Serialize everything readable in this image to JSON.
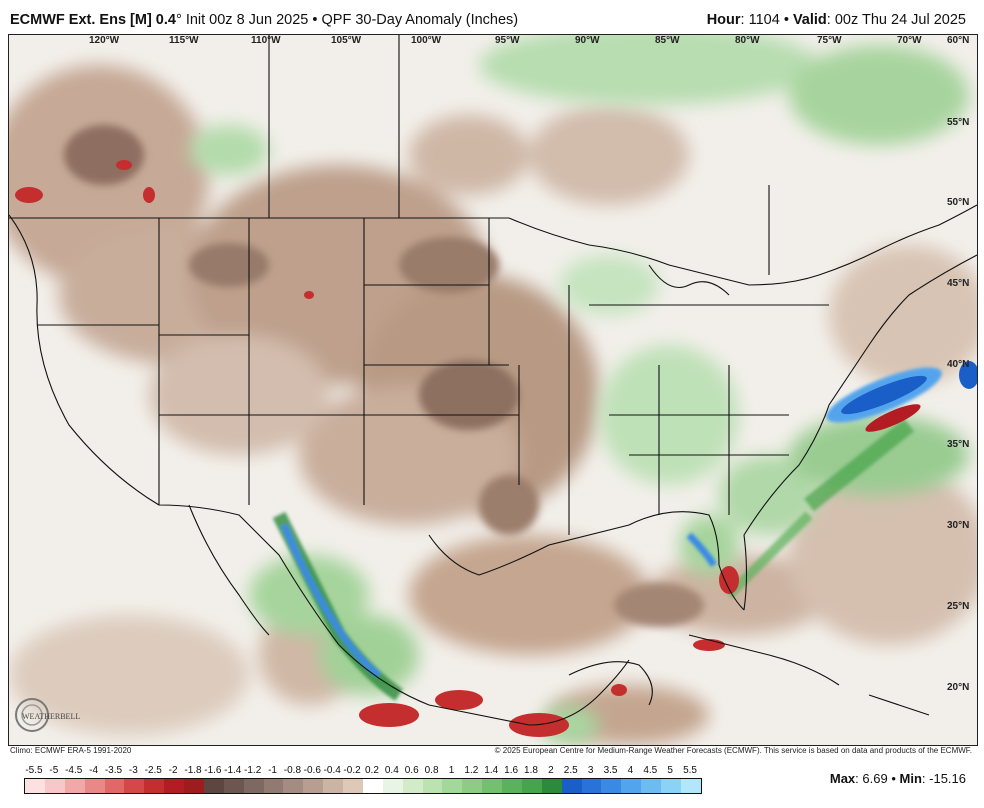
{
  "header": {
    "model": "ECMWF Ext. Ens [M] 0.4",
    "resolution_unit": "°",
    "init": "Init 00z 8 Jun 2025",
    "separator": "•",
    "product": "QPF 30-Day Anomaly (Inches)",
    "hour_label": "Hour",
    "hour_value": ": 1104",
    "valid_label": "Valid",
    "valid_value": ": 00z Thu 24 Jul 2025"
  },
  "map": {
    "lon_labels": [
      "120°W",
      "115°W",
      "110°W",
      "105°W",
      "100°W",
      "95°W",
      "90°W",
      "85°W",
      "80°W",
      "75°W",
      "70°W"
    ],
    "lat_labels": [
      "60°N",
      "55°N",
      "50°N",
      "45°N",
      "40°N",
      "35°N",
      "30°N",
      "25°N",
      "20°N"
    ],
    "features": [
      {
        "name": "Wet anomaly off Mid-Atlantic coast",
        "kind": "wet"
      },
      {
        "name": "Dry core east of Mid-Atlantic",
        "kind": "dry"
      },
      {
        "name": "Wet Sierra Madre Occidental",
        "kind": "wet"
      },
      {
        "name": "Wet Florida west coast",
        "kind": "wet"
      }
    ]
  },
  "logo": {
    "text": "WEATHERBELL"
  },
  "footer": {
    "climo": "Climo: ECMWF ERA-5 1991-2020",
    "copyright": "© 2025 European Centre for Medium-Range Weather Forecasts (ECMWF). This service is based on data and products of the ECMWF."
  },
  "colorbar": {
    "ticks": [
      "-5.5",
      "-5",
      "-4.5",
      "-4",
      "-3.5",
      "-3",
      "-2.5",
      "-2",
      "-1.8",
      "-1.6",
      "-1.4",
      "-1.2",
      "-1",
      "-0.8",
      "-0.6",
      "-0.4",
      "-0.2",
      "0.2",
      "0.4",
      "0.6",
      "0.8",
      "1",
      "1.2",
      "1.4",
      "1.6",
      "1.8",
      "2",
      "2.5",
      "3",
      "3.5",
      "4",
      "4.5",
      "5",
      "5.5"
    ],
    "colors": [
      "#fde0e0",
      "#f8c8c8",
      "#f0a8a8",
      "#e88888",
      "#e06868",
      "#d44848",
      "#c42e2e",
      "#b41c24",
      "#9c1c20",
      "#5e4640",
      "#6e5650",
      "#7e6862",
      "#907a72",
      "#a48c82",
      "#b89e90",
      "#ccb4a4",
      "#dec8b8",
      "#ffffff",
      "#e8f4e4",
      "#d2ecca",
      "#bce2b2",
      "#a4d89a",
      "#8ccc84",
      "#74c06e",
      "#5cb25c",
      "#46a44a",
      "#2c8a3c",
      "#1a5ec8",
      "#2872d8",
      "#3a8ae4",
      "#52a4ec",
      "#6cbcf2",
      "#8ad2f6",
      "#b2e6fa"
    ]
  },
  "stats": {
    "max_label": "Max",
    "max_value": ": 6.69",
    "sep": "•",
    "min_label": "Min",
    "min_value": ": -15.16"
  }
}
